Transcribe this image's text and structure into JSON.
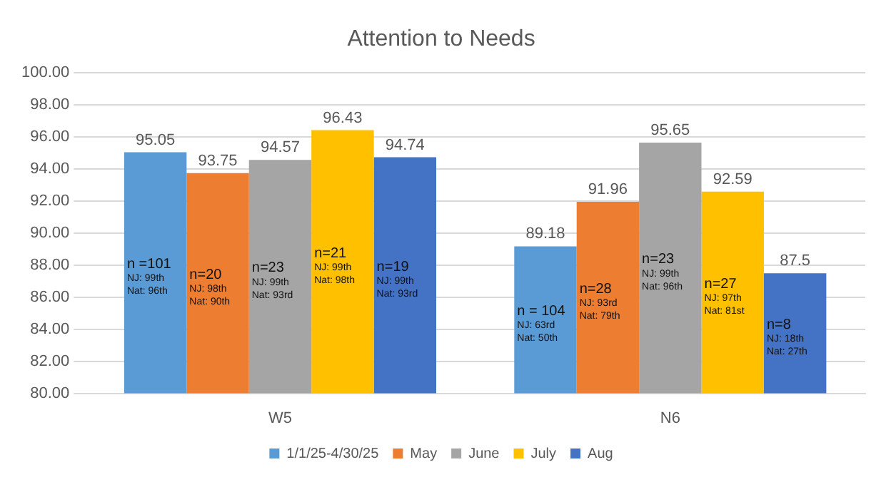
{
  "chart_data": {
    "type": "bar",
    "title": "Attention to Needs",
    "categories": [
      "W5",
      "N6"
    ],
    "series": [
      {
        "name": "1/1/25-4/30/25",
        "color": "#5b9bd5",
        "values": [
          95.05,
          89.18
        ]
      },
      {
        "name": "May",
        "color": "#ed7d31",
        "values": [
          93.75,
          91.96
        ]
      },
      {
        "name": "June",
        "color": "#a5a5a5",
        "values": [
          94.57,
          95.65
        ]
      },
      {
        "name": "July",
        "color": "#ffc000",
        "values": [
          96.43,
          92.59
        ]
      },
      {
        "name": "Aug",
        "color": "#4472c4",
        "values": [
          94.74,
          87.5
        ]
      }
    ],
    "ylim": [
      80,
      100
    ],
    "yticks": [
      {
        "value": 80,
        "label": "80.00"
      },
      {
        "value": 82,
        "label": "82.00"
      },
      {
        "value": 84,
        "label": "84.00"
      },
      {
        "value": 86,
        "label": "86.00"
      },
      {
        "value": 88,
        "label": "88.00"
      },
      {
        "value": 90,
        "label": "90.00"
      },
      {
        "value": 92,
        "label": "92.00"
      },
      {
        "value": 94,
        "label": "94.00"
      },
      {
        "value": 96,
        "label": "96.00"
      },
      {
        "value": 98,
        "label": "98.00"
      },
      {
        "value": 100,
        "label": "100.00"
      }
    ],
    "grid": "y",
    "legend": "bottom",
    "data_labels": true,
    "annotations": [
      "n =101\nNJ: 99th\nNat: 96th",
      "n=20\nNJ: 98th\nNat: 90th",
      "n=23\nNJ: 99th\nNat: 93rd",
      "n=21\nNJ: 99th\nNat: 98th",
      "n=19\nNJ: 99th\nNat: 93rd",
      "n = 104\nNJ: 63rd\nNat: 50th",
      "n=28\nNJ: 93rd\nNat: 79th",
      "n=23\nNJ: 99th\nNat: 96th",
      "n=27\nNJ: 97th\nNat: 81st",
      "n=8\nNJ: 18th\nNat: 27th"
    ]
  }
}
